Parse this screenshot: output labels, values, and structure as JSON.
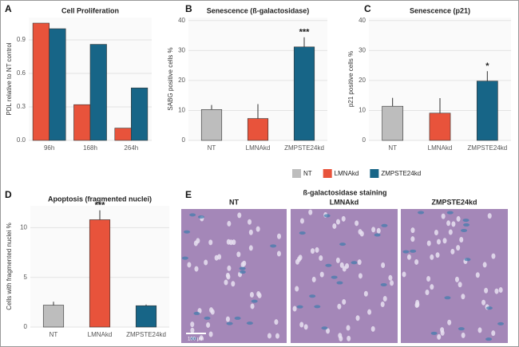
{
  "chart_data": [
    {
      "type": "bar",
      "panel": "A",
      "title": "Cell Proliferation",
      "y_label": "PDL relative to NT control",
      "categories": [
        "96h",
        "168h",
        "264h"
      ],
      "series": [
        {
          "name": "LMNAkd",
          "color": "#e8533b",
          "values": [
            1.05,
            0.32,
            0.11
          ]
        },
        {
          "name": "ZMPSTE24kd",
          "color": "#176587",
          "values": [
            1.0,
            0.86,
            0.47
          ]
        }
      ],
      "ylim": [
        0,
        1.1
      ],
      "yticks": [
        {
          "value": 0,
          "label": "0.0"
        },
        0.3,
        0.6,
        0.9
      ],
      "grid": true
    },
    {
      "type": "bar",
      "panel": "B",
      "title": "Senescence (ß-galactosidase)",
      "y_label": "SABG positive cells %",
      "categories": [
        "NT",
        "LMNAkd",
        "ZMPSTE24kd"
      ],
      "values": [
        10.3,
        7.3,
        31.2
      ],
      "errors": [
        1.5,
        4.8,
        3.2
      ],
      "colors": [
        "#bdbdbd",
        "#e8533b",
        "#176587"
      ],
      "annotations": [
        {
          "category": "ZMPSTE24kd",
          "text": "***"
        }
      ],
      "ylim": [
        0,
        41
      ],
      "yticks": [
        0,
        10,
        20,
        30,
        40
      ],
      "grid": true
    },
    {
      "type": "bar",
      "panel": "C",
      "title": "Senescence (p21)",
      "y_label": "p21 positive cells %",
      "categories": [
        "NT",
        "LMNAkd",
        "ZMPSTE24kd"
      ],
      "values": [
        11.4,
        9.1,
        19.8
      ],
      "errors": [
        2.8,
        5.0,
        3.3
      ],
      "colors": [
        "#bdbdbd",
        "#e8533b",
        "#176587"
      ],
      "annotations": [
        {
          "category": "ZMPSTE24kd",
          "text": "*"
        }
      ],
      "ylim": [
        0,
        41
      ],
      "yticks": [
        0,
        10,
        20,
        30,
        40
      ],
      "grid": true
    },
    {
      "type": "bar",
      "panel": "D",
      "title": "Apoptosis (fragmented nuclei)",
      "y_label": "Cells with fragmented nuclei %",
      "categories": [
        "NT",
        "LMNAkd",
        "ZMPSTE24kd"
      ],
      "values": [
        2.2,
        10.8,
        2.15
      ],
      "errors": [
        0.35,
        0.95,
        0.12
      ],
      "colors": [
        "#bdbdbd",
        "#e8533b",
        "#176587"
      ],
      "annotations": [
        {
          "category": "LMNAkd",
          "text": "***"
        }
      ],
      "ylim": [
        0,
        12.2
      ],
      "yticks": [
        0,
        5,
        10
      ],
      "grid": true
    }
  ],
  "legend": {
    "items": [
      {
        "name": "NT",
        "color": "#bdbdbd"
      },
      {
        "name": "LMNAkd",
        "color": "#e8533b"
      },
      {
        "name": "ZMPSTE24kd",
        "color": "#176587"
      }
    ]
  },
  "image_panel": {
    "panel": "E",
    "title": "ß-galactosidase staining",
    "labels": [
      "NT",
      "LMNAkd",
      "ZMPSTE24kd"
    ],
    "scale_bar": "100 µm"
  }
}
